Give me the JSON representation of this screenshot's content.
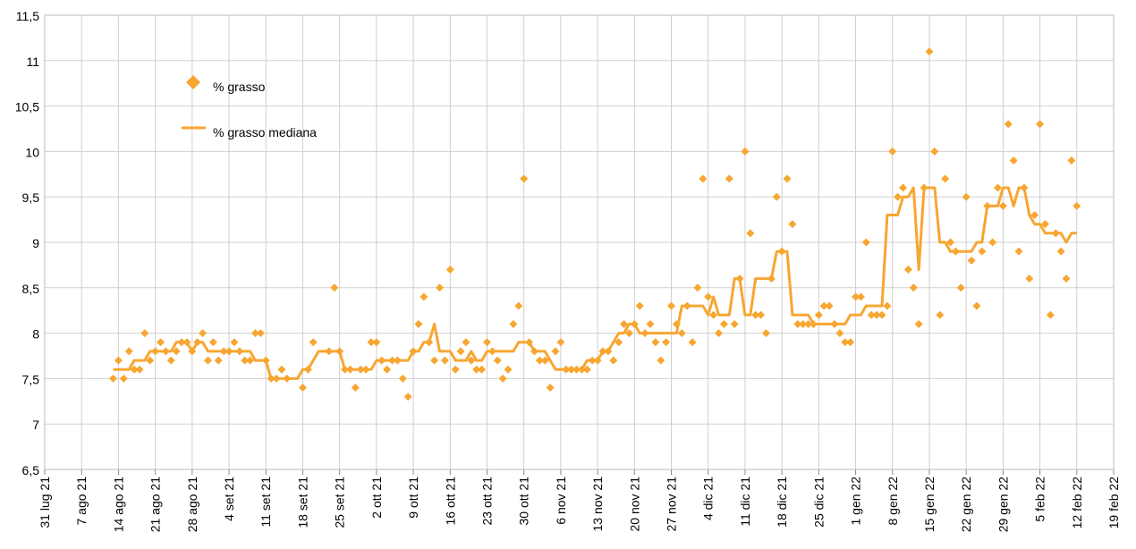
{
  "chart_data": {
    "type": "line",
    "x": [
      "2021-08-13",
      "2021-08-14",
      "2021-08-15",
      "2021-08-16",
      "2021-08-17",
      "2021-08-18",
      "2021-08-19",
      "2021-08-20",
      "2021-08-21",
      "2021-08-22",
      "2021-08-23",
      "2021-08-24",
      "2021-08-25",
      "2021-08-26",
      "2021-08-27",
      "2021-08-28",
      "2021-08-29",
      "2021-08-30",
      "2021-08-31",
      "2021-09-01",
      "2021-09-02",
      "2021-09-03",
      "2021-09-04",
      "2021-09-05",
      "2021-09-06",
      "2021-09-07",
      "2021-09-08",
      "2021-09-09",
      "2021-09-10",
      "2021-09-11",
      "2021-09-12",
      "2021-09-13",
      "2021-09-14",
      "2021-09-15",
      "2021-09-16",
      "2021-09-17",
      "2021-09-18",
      "2021-09-19",
      "2021-09-20",
      "2021-09-21",
      "2021-09-22",
      "2021-09-23",
      "2021-09-24",
      "2021-09-25",
      "2021-09-26",
      "2021-09-27",
      "2021-09-28",
      "2021-09-29",
      "2021-09-30",
      "2021-10-01",
      "2021-10-02",
      "2021-10-03",
      "2021-10-04",
      "2021-10-05",
      "2021-10-06",
      "2021-10-07",
      "2021-10-08",
      "2021-10-09",
      "2021-10-10",
      "2021-10-11",
      "2021-10-12",
      "2021-10-13",
      "2021-10-14",
      "2021-10-15",
      "2021-10-16",
      "2021-10-17",
      "2021-10-18",
      "2021-10-19",
      "2021-10-20",
      "2021-10-21",
      "2021-10-22",
      "2021-10-23",
      "2021-10-24",
      "2021-10-25",
      "2021-10-26",
      "2021-10-27",
      "2021-10-28",
      "2021-10-29",
      "2021-10-30",
      "2021-10-31",
      "2021-11-01",
      "2021-11-02",
      "2021-11-03",
      "2021-11-04",
      "2021-11-05",
      "2021-11-06",
      "2021-11-07",
      "2021-11-08",
      "2021-11-09",
      "2021-11-10",
      "2021-11-11",
      "2021-11-12",
      "2021-11-13",
      "2021-11-14",
      "2021-11-15",
      "2021-11-16",
      "2021-11-17",
      "2021-11-18",
      "2021-11-19",
      "2021-11-20",
      "2021-11-21",
      "2021-11-22",
      "2021-11-23",
      "2021-11-24",
      "2021-11-25",
      "2021-11-26",
      "2021-11-27",
      "2021-11-28",
      "2021-11-29",
      "2021-11-30",
      "2021-12-01",
      "2021-12-02",
      "2021-12-03",
      "2021-12-04",
      "2021-12-05",
      "2021-12-06",
      "2021-12-07",
      "2021-12-08",
      "2021-12-09",
      "2021-12-10",
      "2021-12-11",
      "2021-12-12",
      "2021-12-13",
      "2021-12-14",
      "2021-12-15",
      "2021-12-16",
      "2021-12-17",
      "2021-12-18",
      "2021-12-19",
      "2021-12-20",
      "2021-12-21",
      "2021-12-22",
      "2021-12-23",
      "2021-12-24",
      "2021-12-25",
      "2021-12-26",
      "2021-12-27",
      "2021-12-28",
      "2021-12-29",
      "2021-12-30",
      "2021-12-31",
      "2022-01-01",
      "2022-01-02",
      "2022-01-03",
      "2022-01-04",
      "2022-01-05",
      "2022-01-06",
      "2022-01-07",
      "2022-01-08",
      "2022-01-09",
      "2022-01-10",
      "2022-01-11",
      "2022-01-12",
      "2022-01-13",
      "2022-01-14",
      "2022-01-15",
      "2022-01-16",
      "2022-01-17",
      "2022-01-18",
      "2022-01-19",
      "2022-01-20",
      "2022-01-21",
      "2022-01-22",
      "2022-01-23",
      "2022-01-24",
      "2022-01-25",
      "2022-01-26",
      "2022-01-27",
      "2022-01-28",
      "2022-01-29",
      "2022-01-30",
      "2022-01-31",
      "2022-02-01",
      "2022-02-02",
      "2022-02-03",
      "2022-02-04",
      "2022-02-05",
      "2022-02-06",
      "2022-02-07",
      "2022-02-08",
      "2022-02-09",
      "2022-02-10",
      "2022-02-11",
      "2022-02-12"
    ],
    "series": [
      {
        "name": "% grasso",
        "type": "scatter",
        "marker": "diamond",
        "color": "#f7a631",
        "values": [
          7.5,
          7.7,
          7.5,
          7.8,
          7.6,
          7.6,
          8.0,
          7.7,
          7.8,
          7.9,
          7.8,
          7.7,
          7.8,
          7.9,
          7.9,
          7.8,
          7.9,
          8.0,
          7.7,
          7.9,
          7.7,
          7.8,
          7.8,
          7.9,
          7.8,
          7.7,
          7.7,
          8.0,
          8.0,
          7.7,
          7.5,
          7.5,
          7.6,
          7.5,
          null,
          null,
          7.4,
          7.6,
          7.9,
          null,
          null,
          7.8,
          8.5,
          7.8,
          7.6,
          7.6,
          7.4,
          7.6,
          7.6,
          7.9,
          7.9,
          7.7,
          7.6,
          7.7,
          7.7,
          7.5,
          7.3,
          7.8,
          8.1,
          8.4,
          7.9,
          7.7,
          8.5,
          7.7,
          8.7,
          7.6,
          7.8,
          7.9,
          7.7,
          7.6,
          7.6,
          7.9,
          7.8,
          7.7,
          7.5,
          7.6,
          8.1,
          8.3,
          9.7,
          7.9,
          7.8,
          7.7,
          7.7,
          7.4,
          7.8,
          7.9,
          7.6,
          7.6,
          7.6,
          7.6,
          7.6,
          7.7,
          7.7,
          7.8,
          7.8,
          7.7,
          7.9,
          8.1,
          8.0,
          8.1,
          8.3,
          8.0,
          8.1,
          7.9,
          7.7,
          7.9,
          8.3,
          8.1,
          8.0,
          8.3,
          7.9,
          8.5,
          9.7,
          8.4,
          8.2,
          8.0,
          8.1,
          9.7,
          8.1,
          8.6,
          10.0,
          9.1,
          8.2,
          8.2,
          8.0,
          8.6,
          9.5,
          8.9,
          9.7,
          9.2,
          8.1,
          8.1,
          8.1,
          8.1,
          8.2,
          8.3,
          8.3,
          8.1,
          8.0,
          7.9,
          7.9,
          8.4,
          8.4,
          9.0,
          8.2,
          8.2,
          8.2,
          8.3,
          10.0,
          9.5,
          9.6,
          8.7,
          8.5,
          8.1,
          9.6,
          11.1,
          10.0,
          8.2,
          9.7,
          9.0,
          8.9,
          8.5,
          9.5,
          8.8,
          8.3,
          8.9,
          9.4,
          9.0,
          9.6,
          9.4,
          10.3,
          9.9,
          8.9,
          9.6,
          8.6,
          9.3,
          10.3,
          9.2,
          8.2,
          9.1,
          8.9,
          8.6,
          9.9,
          9.4
        ]
      },
      {
        "name": "% grasso mediana",
        "type": "line",
        "color": "#f7a631",
        "values": [
          7.6,
          7.6,
          7.6,
          7.6,
          7.7,
          7.7,
          7.7,
          7.8,
          7.8,
          7.8,
          7.8,
          7.8,
          7.9,
          7.9,
          7.9,
          7.8,
          7.9,
          7.9,
          7.8,
          7.8,
          7.8,
          7.8,
          7.8,
          7.8,
          7.8,
          7.8,
          7.8,
          7.7,
          7.7,
          7.7,
          7.5,
          7.5,
          7.5,
          7.5,
          7.5,
          7.5,
          7.6,
          7.6,
          7.7,
          7.8,
          7.8,
          7.8,
          7.8,
          7.8,
          7.6,
          7.6,
          7.6,
          7.6,
          7.6,
          7.6,
          7.7,
          7.7,
          7.7,
          7.7,
          7.7,
          7.7,
          7.7,
          7.8,
          7.8,
          7.9,
          7.9,
          8.1,
          7.8,
          7.8,
          7.8,
          7.7,
          7.7,
          7.7,
          7.8,
          7.7,
          7.7,
          7.8,
          7.8,
          7.8,
          7.8,
          7.8,
          7.8,
          7.9,
          7.9,
          7.9,
          7.8,
          7.8,
          7.8,
          7.7,
          7.6,
          7.6,
          7.6,
          7.6,
          7.6,
          7.6,
          7.7,
          7.7,
          7.7,
          7.8,
          7.8,
          7.9,
          8.0,
          8.0,
          8.1,
          8.1,
          8.0,
          8.0,
          8.0,
          8.0,
          8.0,
          8.0,
          8.0,
          8.0,
          8.3,
          8.3,
          8.3,
          8.3,
          8.3,
          8.2,
          8.4,
          8.2,
          8.2,
          8.2,
          8.6,
          8.6,
          8.2,
          8.2,
          8.6,
          8.6,
          8.6,
          8.6,
          8.9,
          8.9,
          8.9,
          8.2,
          8.2,
          8.2,
          8.2,
          8.1,
          8.1,
          8.1,
          8.1,
          8.1,
          8.1,
          8.1,
          8.2,
          8.2,
          8.2,
          8.3,
          8.3,
          8.3,
          8.3,
          9.3,
          9.3,
          9.3,
          9.5,
          9.5,
          9.6,
          8.7,
          9.6,
          9.6,
          9.6,
          9.0,
          9.0,
          8.9,
          8.9,
          8.9,
          8.9,
          8.9,
          9.0,
          9.0,
          9.4,
          9.4,
          9.4,
          9.6,
          9.6,
          9.4,
          9.6,
          9.6,
          9.3,
          9.2,
          9.2,
          9.1,
          9.1,
          9.1,
          9.1,
          9.0,
          9.1,
          9.1
        ]
      }
    ],
    "xlim": [
      "2021-07-31",
      "2022-02-19"
    ],
    "xticks": [
      {
        "value": "2021-07-31",
        "label": "31 lug 21"
      },
      {
        "value": "2021-08-07",
        "label": "7 ago 21"
      },
      {
        "value": "2021-08-14",
        "label": "14 ago 21"
      },
      {
        "value": "2021-08-21",
        "label": "21 ago 21"
      },
      {
        "value": "2021-08-28",
        "label": "28 ago 21"
      },
      {
        "value": "2021-09-04",
        "label": "4 set 21"
      },
      {
        "value": "2021-09-11",
        "label": "11 set 21"
      },
      {
        "value": "2021-09-18",
        "label": "18 set 21"
      },
      {
        "value": "2021-09-25",
        "label": "25 set 21"
      },
      {
        "value": "2021-10-02",
        "label": "2 ott 21"
      },
      {
        "value": "2021-10-09",
        "label": "9 ott 21"
      },
      {
        "value": "2021-10-16",
        "label": "16 ott 21"
      },
      {
        "value": "2021-10-23",
        "label": "23 ott 21"
      },
      {
        "value": "2021-10-30",
        "label": "30 ott 21"
      },
      {
        "value": "2021-11-06",
        "label": "6 nov 21"
      },
      {
        "value": "2021-11-13",
        "label": "13 nov 21"
      },
      {
        "value": "2021-11-20",
        "label": "20 nov 21"
      },
      {
        "value": "2021-11-27",
        "label": "27 nov 21"
      },
      {
        "value": "2021-12-04",
        "label": "4 dic 21"
      },
      {
        "value": "2021-12-11",
        "label": "11 dic 21"
      },
      {
        "value": "2021-12-18",
        "label": "18 dic 21"
      },
      {
        "value": "2021-12-25",
        "label": "25 dic 21"
      },
      {
        "value": "2022-01-01",
        "label": "1 gen 22"
      },
      {
        "value": "2022-01-08",
        "label": "8 gen 22"
      },
      {
        "value": "2022-01-15",
        "label": "15 gen 22"
      },
      {
        "value": "2022-01-22",
        "label": "22 gen 22"
      },
      {
        "value": "2022-01-29",
        "label": "29 gen 22"
      },
      {
        "value": "2022-02-05",
        "label": "5 feb 22"
      },
      {
        "value": "2022-02-12",
        "label": "12 feb 22"
      },
      {
        "value": "2022-02-19",
        "label": "19 feb 22"
      }
    ],
    "ylim": [
      6.5,
      11.5
    ],
    "yticks": [
      {
        "value": 6.5,
        "label": "6,5"
      },
      7,
      {
        "value": 7.5,
        "label": "7,5"
      },
      8,
      {
        "value": 8.5,
        "label": "8,5"
      },
      9,
      {
        "value": 9.5,
        "label": "9,5"
      },
      10,
      {
        "value": 10.5,
        "label": "10,5"
      },
      11,
      {
        "value": 11.5,
        "label": "11,5"
      }
    ],
    "grid": true,
    "legend": "upper left"
  }
}
